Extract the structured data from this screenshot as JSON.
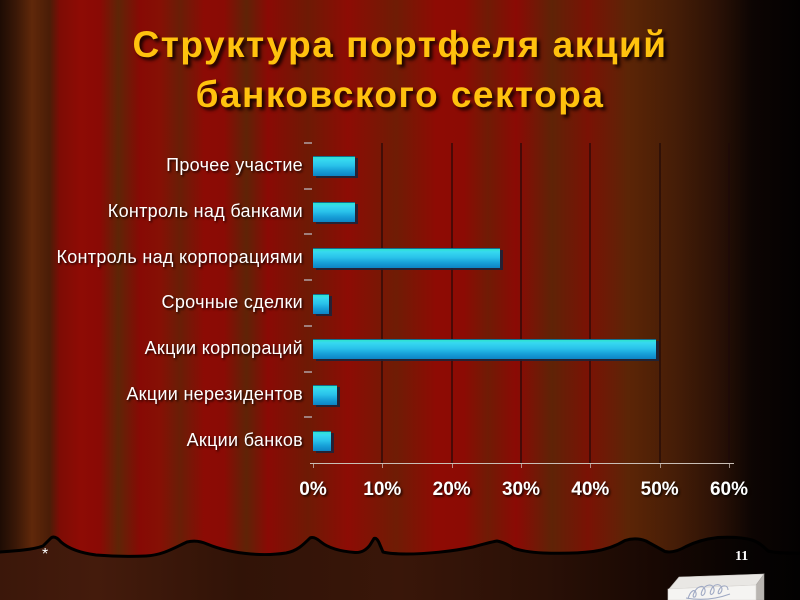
{
  "slide": {
    "title_line1": "Структура портфеля акций",
    "title_line2": "банковского сектора",
    "footnote_marker": "*",
    "slide_number": "11"
  },
  "chart_data": {
    "type": "bar",
    "orientation": "horizontal",
    "title": "",
    "xlabel": "",
    "ylabel": "",
    "categories": [
      "Прочее участие",
      "Контроль над банками",
      "Контроль над корпорациями",
      "Срочные сделки",
      "Акции корпораций",
      "Акции нерезидентов",
      "Акции банков"
    ],
    "values": [
      6,
      6,
      27,
      2.3,
      49.5,
      3.4,
      2.6
    ],
    "unit": "%",
    "xlim": [
      0,
      60
    ],
    "x_tick_values": [
      0,
      10,
      20,
      30,
      40,
      50,
      60
    ],
    "x_tick_labels": [
      "0%",
      "10%",
      "20%",
      "30%",
      "40%",
      "50%",
      "60%"
    ],
    "grid": true,
    "legend": false
  },
  "colors": {
    "title": "#ffc20e",
    "label_text": "#ffffff",
    "bar_top": "#2fe3cd",
    "bar_bottom": "#0d84c4",
    "bar_shadow": "#1c2440",
    "background_red": "#8b0a05",
    "background_dark": "#030101"
  },
  "decor": {
    "corner_icon": "white-3d-box-with-scribbles",
    "divider": "torn-edge-wavy-line"
  }
}
